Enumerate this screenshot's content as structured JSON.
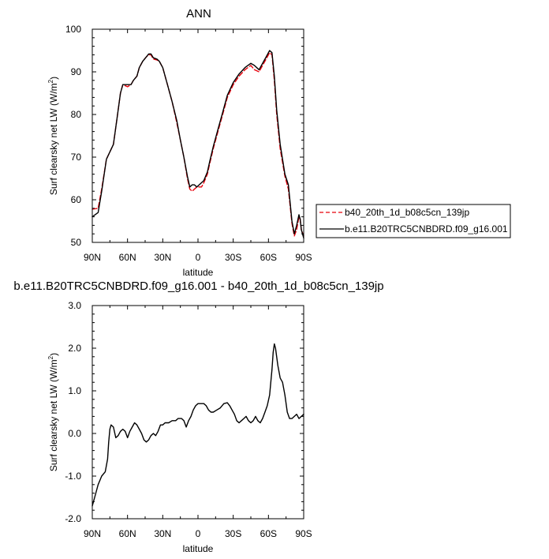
{
  "chart_data": [
    {
      "type": "line",
      "title": "ANN",
      "xlabel": "latitude",
      "ylabel": "Surf clearsky net LW (W/m²)",
      "ylabel_parts": [
        "Surf clearsky net LW (W/m",
        "2",
        ")"
      ],
      "xlim": [
        90,
        -90
      ],
      "ylim": [
        50,
        100
      ],
      "xticks": [
        90,
        60,
        30,
        0,
        -30,
        -60,
        -90
      ],
      "xtick_labels": [
        "90N",
        "60N",
        "30N",
        "0",
        "30S",
        "60S",
        "90S"
      ],
      "yticks": [
        50,
        60,
        70,
        80,
        90,
        100
      ],
      "ytick_labels": [
        "50",
        "60",
        "70",
        "80",
        "90",
        "100"
      ],
      "legend_position": "right",
      "series": [
        {
          "name": "b40_20th_1d_b08c5cn_139jp",
          "color": "#e8000b",
          "dash": "dashed",
          "points": [
            [
              90,
              57.8
            ],
            [
              85,
              58.0
            ],
            [
              82,
              62.5
            ],
            [
              78,
              69.5
            ],
            [
              72,
              73.0
            ],
            [
              69,
              79.0
            ],
            [
              66,
              85.0
            ],
            [
              64,
              87.0
            ],
            [
              60,
              86.5
            ],
            [
              57,
              87.0
            ],
            [
              55,
              88.0
            ],
            [
              52,
              89.0
            ],
            [
              50,
              91.0
            ],
            [
              47,
              92.5
            ],
            [
              44,
              93.5
            ],
            [
              42,
              94.0
            ],
            [
              40,
              94.0
            ],
            [
              38,
              93.0
            ],
            [
              35,
              92.8
            ],
            [
              33,
              92.5
            ],
            [
              30,
              91.0
            ],
            [
              26,
              87.0
            ],
            [
              22,
              83.0
            ],
            [
              18,
              78.0
            ],
            [
              15,
              74.0
            ],
            [
              12,
              70.0
            ],
            [
              9,
              65.0
            ],
            [
              7,
              62.5
            ],
            [
              5,
              62.0
            ],
            [
              3,
              62.5
            ],
            [
              1,
              63.0
            ],
            [
              -1,
              63.0
            ],
            [
              -3,
              63.0
            ],
            [
              -5,
              64.0
            ],
            [
              -8,
              66.0
            ],
            [
              -10,
              68.5
            ],
            [
              -13,
              72.0
            ],
            [
              -17,
              76.0
            ],
            [
              -21,
              80.0
            ],
            [
              -25,
              84.0
            ],
            [
              -30,
              87.0
            ],
            [
              -35,
              89.0
            ],
            [
              -40,
              90.5
            ],
            [
              -45,
              91.5
            ],
            [
              -48,
              90.5
            ],
            [
              -52,
              90.0
            ],
            [
              -55,
              91.5
            ],
            [
              -58,
              93.0
            ],
            [
              -61,
              94.5
            ],
            [
              -63,
              94.0
            ],
            [
              -65,
              88.0
            ],
            [
              -67,
              80.0
            ],
            [
              -70,
              72.0
            ],
            [
              -74,
              65.5
            ],
            [
              -77,
              62.5
            ],
            [
              -80,
              54.5
            ],
            [
              -82,
              51.5
            ],
            [
              -84,
              53.0
            ],
            [
              -86,
              56.0
            ],
            [
              -87,
              55.5
            ],
            [
              -88,
              53.0
            ],
            [
              -90,
              51.5
            ]
          ]
        },
        {
          "name": "b.e11.B20TRC5CNBDRD.f09_g16.001",
          "color": "#000000",
          "dash": "solid",
          "points": [
            [
              90,
              56.0
            ],
            [
              85,
              57.0
            ],
            [
              82,
              62.0
            ],
            [
              78,
              69.5
            ],
            [
              72,
              73.0
            ],
            [
              69,
              79.0
            ],
            [
              66,
              85.0
            ],
            [
              64,
              87.0
            ],
            [
              60,
              87.0
            ],
            [
              57,
              87.0
            ],
            [
              55,
              88.0
            ],
            [
              52,
              89.0
            ],
            [
              50,
              91.0
            ],
            [
              47,
              92.5
            ],
            [
              44,
              93.5
            ],
            [
              42,
              94.2
            ],
            [
              40,
              94.2
            ],
            [
              38,
              93.3
            ],
            [
              35,
              93.0
            ],
            [
              33,
              92.5
            ],
            [
              30,
              91.0
            ],
            [
              26,
              87.0
            ],
            [
              22,
              83.0
            ],
            [
              18,
              78.5
            ],
            [
              15,
              74.0
            ],
            [
              12,
              70.0
            ],
            [
              9,
              65.5
            ],
            [
              7,
              63.0
            ],
            [
              5,
              63.5
            ],
            [
              3,
              63.5
            ],
            [
              1,
              63.0
            ],
            [
              -1,
              63.5
            ],
            [
              -3,
              64.0
            ],
            [
              -5,
              64.5
            ],
            [
              -8,
              66.5
            ],
            [
              -10,
              69.0
            ],
            [
              -13,
              72.5
            ],
            [
              -17,
              76.5
            ],
            [
              -21,
              80.5
            ],
            [
              -25,
              84.5
            ],
            [
              -30,
              87.5
            ],
            [
              -35,
              89.5
            ],
            [
              -40,
              91.0
            ],
            [
              -45,
              92.0
            ],
            [
              -48,
              91.5
            ],
            [
              -52,
              90.5
            ],
            [
              -55,
              92.0
            ],
            [
              -58,
              93.5
            ],
            [
              -61,
              95.0
            ],
            [
              -63,
              94.5
            ],
            [
              -65,
              89.0
            ],
            [
              -67,
              81.0
            ],
            [
              -70,
              73.0
            ],
            [
              -74,
              66.0
            ],
            [
              -77,
              63.5
            ],
            [
              -80,
              55.0
            ],
            [
              -82,
              52.0
            ],
            [
              -84,
              54.0
            ],
            [
              -86,
              56.5
            ],
            [
              -87,
              55.5
            ],
            [
              -88,
              53.0
            ],
            [
              -90,
              51.0
            ]
          ]
        }
      ]
    },
    {
      "type": "line",
      "title": "b.e11.B20TRC5CNBDRD.f09_g16.001 - b40_20th_1d_b08c5cn_139jp",
      "xlabel": "latitude",
      "ylabel": "Surf clearsky net LW (W/m²)",
      "ylabel_parts": [
        "Surf clearsky net LW (W/m",
        "2",
        ")"
      ],
      "xlim": [
        90,
        -90
      ],
      "ylim": [
        -2.0,
        3.0
      ],
      "xticks": [
        90,
        60,
        30,
        0,
        -30,
        -60,
        -90
      ],
      "xtick_labels": [
        "90N",
        "60N",
        "30N",
        "0",
        "30S",
        "60S",
        "90S"
      ],
      "yticks": [
        -2.0,
        -1.0,
        0.0,
        1.0,
        2.0,
        3.0
      ],
      "ytick_labels": [
        "-2.0",
        "-1.0",
        "0.0",
        "1.0",
        "2.0",
        "3.0"
      ],
      "series": [
        {
          "color": "#000000",
          "dash": "solid",
          "points": [
            [
              90,
              -1.7
            ],
            [
              88,
              -1.5
            ],
            [
              85,
              -1.2
            ],
            [
              82,
              -1.0
            ],
            [
              79,
              -0.9
            ],
            [
              77,
              -0.6
            ],
            [
              76,
              -0.2
            ],
            [
              75,
              0.1
            ],
            [
              74,
              0.2
            ],
            [
              72,
              0.15
            ],
            [
              70,
              -0.1
            ],
            [
              68,
              -0.05
            ],
            [
              66,
              0.05
            ],
            [
              64,
              0.1
            ],
            [
              62,
              0.05
            ],
            [
              60,
              -0.1
            ],
            [
              58,
              0.05
            ],
            [
              56,
              0.15
            ],
            [
              54,
              0.25
            ],
            [
              52,
              0.2
            ],
            [
              50,
              0.1
            ],
            [
              48,
              0.0
            ],
            [
              46,
              -0.15
            ],
            [
              44,
              -0.2
            ],
            [
              42,
              -0.15
            ],
            [
              40,
              -0.05
            ],
            [
              38,
              0.0
            ],
            [
              36,
              -0.05
            ],
            [
              34,
              0.05
            ],
            [
              32,
              0.2
            ],
            [
              30,
              0.2
            ],
            [
              28,
              0.25
            ],
            [
              25,
              0.25
            ],
            [
              22,
              0.3
            ],
            [
              19,
              0.3
            ],
            [
              17,
              0.35
            ],
            [
              14,
              0.35
            ],
            [
              12,
              0.3
            ],
            [
              10,
              0.15
            ],
            [
              8,
              0.3
            ],
            [
              6,
              0.4
            ],
            [
              4,
              0.55
            ],
            [
              2,
              0.65
            ],
            [
              0,
              0.7
            ],
            [
              -2,
              0.7
            ],
            [
              -5,
              0.7
            ],
            [
              -7,
              0.65
            ],
            [
              -9,
              0.55
            ],
            [
              -11,
              0.5
            ],
            [
              -13,
              0.5
            ],
            [
              -16,
              0.55
            ],
            [
              -19,
              0.6
            ],
            [
              -22,
              0.7
            ],
            [
              -25,
              0.72
            ],
            [
              -27,
              0.65
            ],
            [
              -29,
              0.55
            ],
            [
              -31,
              0.45
            ],
            [
              -33,
              0.3
            ],
            [
              -35,
              0.25
            ],
            [
              -37,
              0.3
            ],
            [
              -39,
              0.35
            ],
            [
              -41,
              0.4
            ],
            [
              -43,
              0.3
            ],
            [
              -45,
              0.25
            ],
            [
              -47,
              0.3
            ],
            [
              -49,
              0.4
            ],
            [
              -51,
              0.3
            ],
            [
              -53,
              0.25
            ],
            [
              -55,
              0.35
            ],
            [
              -57,
              0.5
            ],
            [
              -59,
              0.65
            ],
            [
              -61,
              0.9
            ],
            [
              -63,
              1.5
            ],
            [
              -64,
              1.9
            ],
            [
              -65,
              2.1
            ],
            [
              -66,
              2.0
            ],
            [
              -68,
              1.6
            ],
            [
              -70,
              1.3
            ],
            [
              -72,
              1.2
            ],
            [
              -74,
              0.9
            ],
            [
              -76,
              0.5
            ],
            [
              -78,
              0.35
            ],
            [
              -80,
              0.35
            ],
            [
              -82,
              0.4
            ],
            [
              -84,
              0.45
            ],
            [
              -86,
              0.35
            ],
            [
              -88,
              0.4
            ],
            [
              -90,
              0.45
            ]
          ]
        }
      ]
    }
  ]
}
